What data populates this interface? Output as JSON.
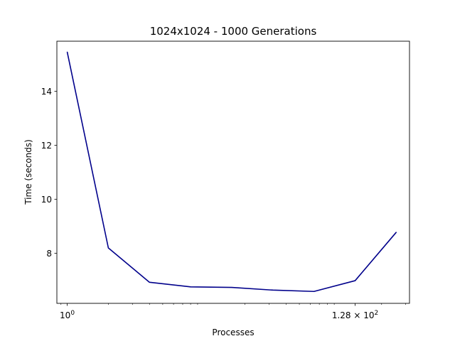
{
  "chart_data": {
    "type": "line",
    "title": "1024x1024 - 1000 Generations",
    "xlabel": "Processes",
    "ylabel": "Time (seconds)",
    "xscale": "log2",
    "x": [
      1,
      2,
      4,
      8,
      16,
      32,
      64,
      128,
      256
    ],
    "series": [
      {
        "values": [
          15.45,
          8.2,
          6.93,
          6.76,
          6.74,
          6.64,
          6.59,
          6.99,
          8.78
        ],
        "color": "#00008b"
      }
    ],
    "xlim": [
      0.84,
      320
    ],
    "ylim": [
      6.15,
      15.85
    ],
    "xticks": [
      {
        "value": 1,
        "label": "10⁰",
        "base": "10",
        "exp": "0"
      },
      {
        "value": 128,
        "label": "1.28 × 10²",
        "base": "1.28 × 10",
        "exp": "2"
      }
    ],
    "yticks": [
      {
        "value": 8,
        "label": "8"
      },
      {
        "value": 10,
        "label": "10"
      },
      {
        "value": 12,
        "label": "12"
      },
      {
        "value": 14,
        "label": "14"
      }
    ],
    "grid": false,
    "legend": "none"
  }
}
